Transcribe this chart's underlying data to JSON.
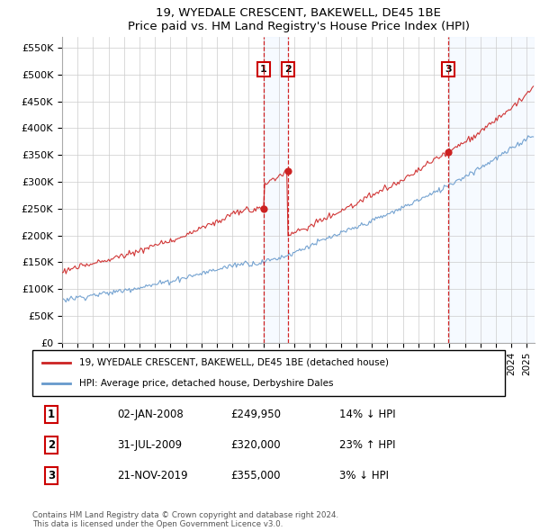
{
  "title": "19, WYEDALE CRESCENT, BAKEWELL, DE45 1BE",
  "subtitle": "Price paid vs. HM Land Registry's House Price Index (HPI)",
  "yticks": [
    0,
    50000,
    100000,
    150000,
    200000,
    250000,
    300000,
    350000,
    400000,
    450000,
    500000,
    550000
  ],
  "background_color": "#ffffff",
  "plot_bg_color": "#ffffff",
  "grid_color": "#cccccc",
  "sale1_t": 2008.01,
  "sale2_t": 2009.58,
  "sale3_t": 2019.92,
  "sale1_p": 249950,
  "sale2_p": 320000,
  "sale3_p": 355000,
  "sale_labels": [
    "1",
    "2",
    "3"
  ],
  "sale_box_color": "#cc0000",
  "dashed_color": "#cc0000",
  "legend_line1": "19, WYEDALE CRESCENT, BAKEWELL, DE45 1BE (detached house)",
  "legend_line2": "HPI: Average price, detached house, Derbyshire Dales",
  "table_rows": [
    {
      "num": "1",
      "date": "02-JAN-2008",
      "price": "£249,950",
      "hpi": "14% ↓ HPI"
    },
    {
      "num": "2",
      "date": "31-JUL-2009",
      "price": "£320,000",
      "hpi": "23% ↑ HPI"
    },
    {
      "num": "3",
      "date": "21-NOV-2019",
      "price": "£355,000",
      "hpi": "3% ↓ HPI"
    }
  ],
  "footer": "Contains HM Land Registry data © Crown copyright and database right 2024.\nThis data is licensed under the Open Government Licence v3.0.",
  "hpi_color": "#6699cc",
  "price_color": "#cc2222",
  "shade_color": "#ddeeff",
  "xstart": 1995.0,
  "xend": 2025.5
}
